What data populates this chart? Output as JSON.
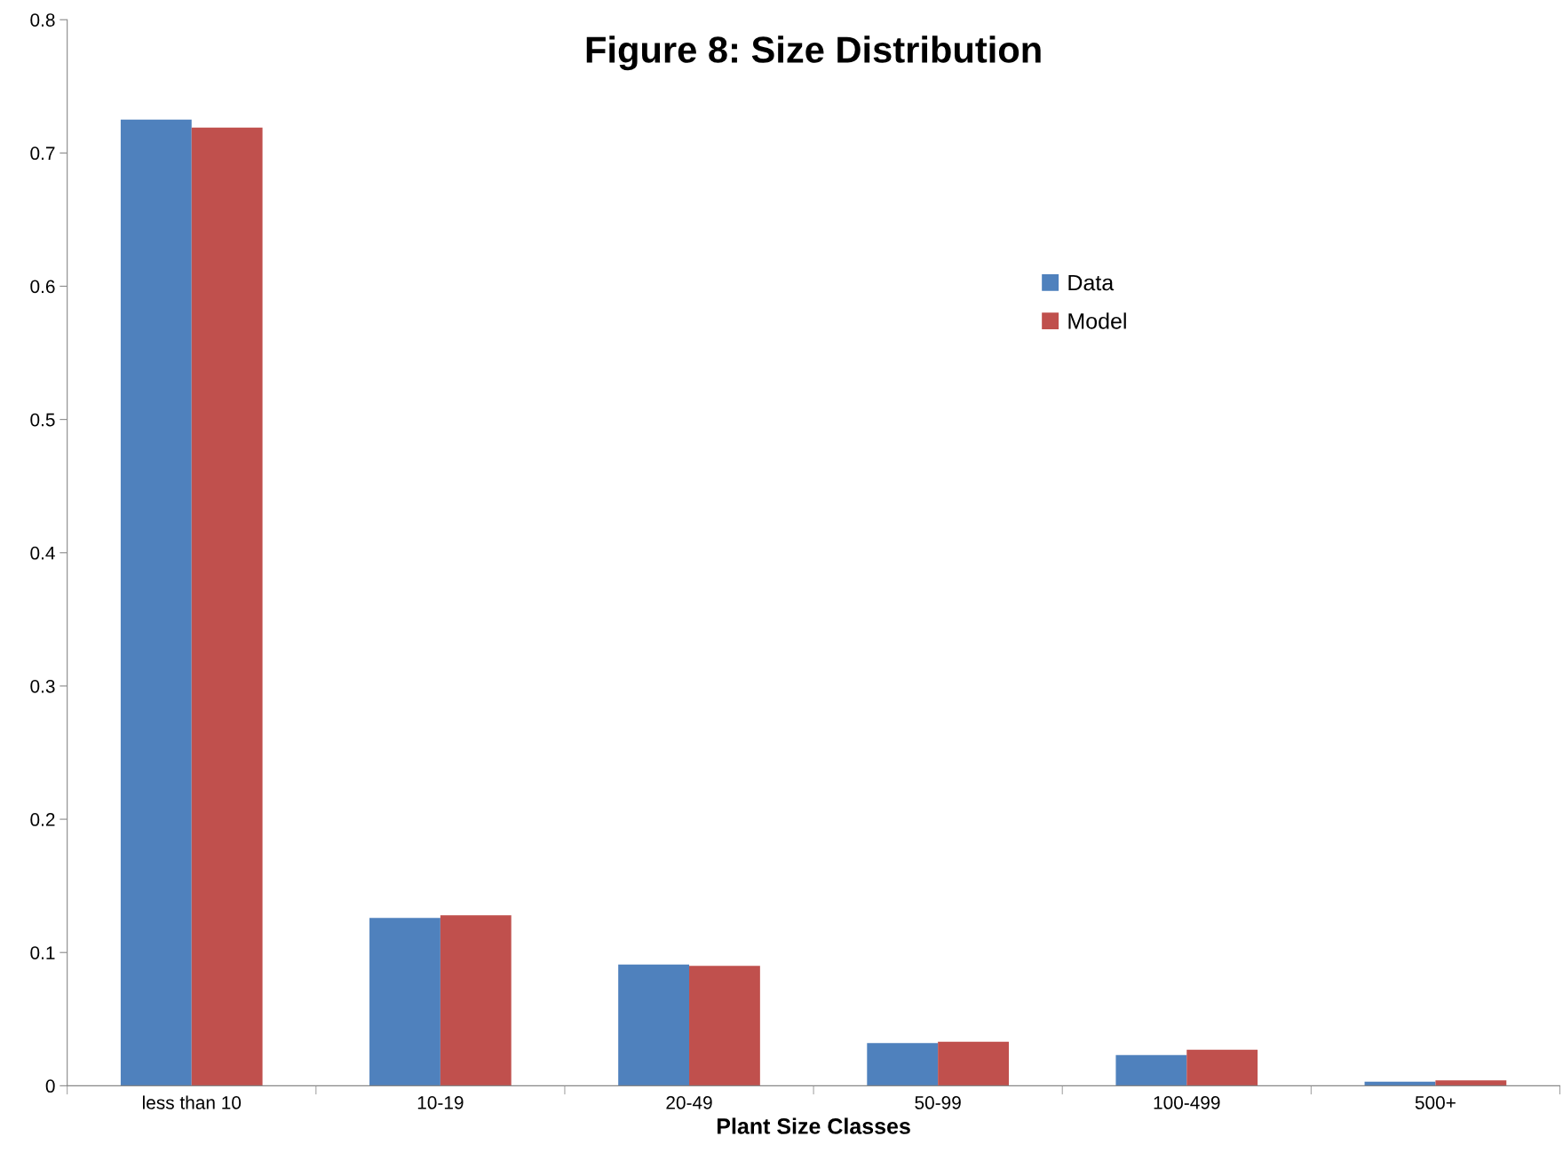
{
  "chart_data": {
    "type": "bar",
    "title": "Figure 8: Size Distribution",
    "xlabel": "Plant Size Classes",
    "categories": [
      "less than 10",
      "10-19",
      "20-49",
      "50-99",
      "100-499",
      "500+"
    ],
    "series": [
      {
        "name": "Data",
        "color": "#4f81bd",
        "values": [
          0.725,
          0.126,
          0.091,
          0.032,
          0.023,
          0.003
        ]
      },
      {
        "name": "Model",
        "color": "#c0504d",
        "values": [
          0.719,
          0.128,
          0.09,
          0.033,
          0.027,
          0.004
        ]
      }
    ],
    "ylim": [
      0,
      0.8
    ],
    "yticks": [
      0,
      0.1,
      0.2,
      0.3,
      0.4,
      0.5,
      0.6,
      0.7,
      0.8
    ],
    "grid": false,
    "legend": "top right"
  }
}
